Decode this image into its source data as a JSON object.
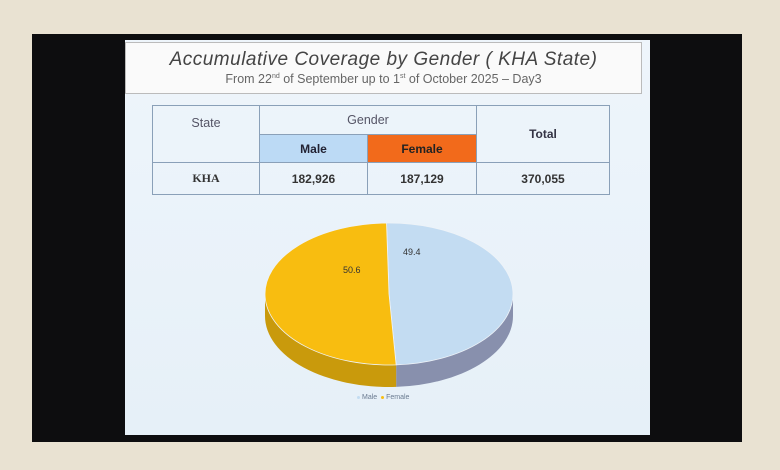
{
  "slide": {
    "title": "Accumulative Coverage by Gender ( KHA State)",
    "subtitle": {
      "pre": "From 22",
      "sup1": "nd",
      "mid": " of September  up to 1",
      "sup2": "st",
      "post": " of October 2025 – Day3"
    }
  },
  "table": {
    "headers": {
      "state": "State",
      "gender": "Gender",
      "male": "Male",
      "female": "Female",
      "total": "Total"
    },
    "row": {
      "state": "KHA",
      "male": "182,926",
      "female": "187,129",
      "total": "370,055"
    }
  },
  "chart_data": {
    "type": "pie",
    "style": "3d",
    "categories": [
      "Male",
      "Female"
    ],
    "values": [
      49.4,
      50.6
    ],
    "data_labels": [
      "49.4",
      "50.6"
    ],
    "colors": [
      "#c3dcf2",
      "#f8bd10"
    ],
    "legend": {
      "entries": [
        "Male",
        "Female"
      ],
      "placement": "bottom"
    }
  }
}
